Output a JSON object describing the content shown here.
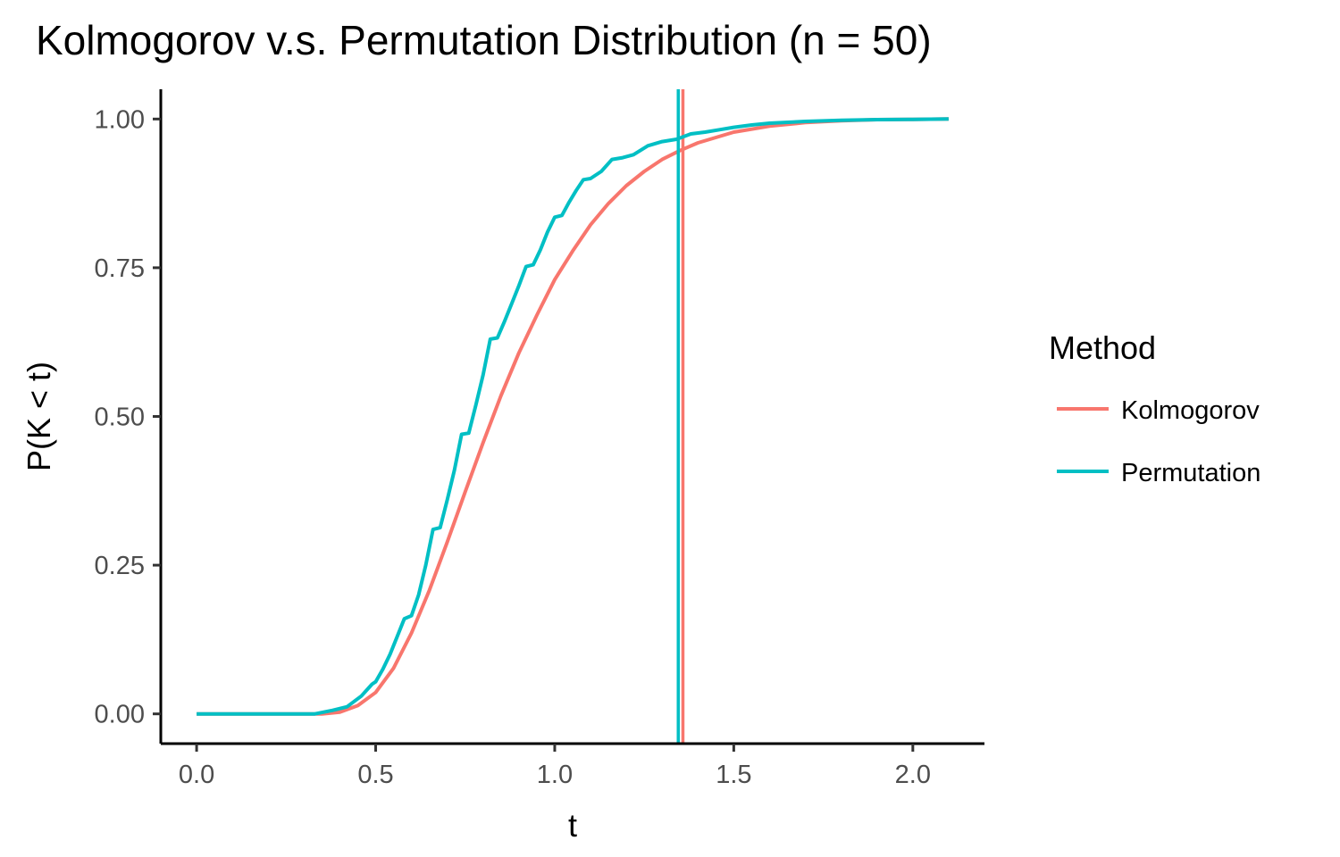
{
  "chart_data": {
    "type": "line",
    "title": "Kolmogorov v.s. Permutation Distribution (n = 50)",
    "xlabel": "t",
    "ylabel": "P(K < t)",
    "xlim": [
      -0.1,
      2.2
    ],
    "ylim": [
      -0.05,
      1.05
    ],
    "x_ticks": [
      0.0,
      0.5,
      1.0,
      1.5,
      2.0
    ],
    "x_tick_labels": [
      "0.0",
      "0.5",
      "1.0",
      "1.5",
      "2.0"
    ],
    "y_ticks": [
      0.0,
      0.25,
      0.5,
      0.75,
      1.0
    ],
    "y_tick_labels": [
      "0.00",
      "0.25",
      "0.50",
      "0.75",
      "1.00"
    ],
    "grid": false,
    "legend": {
      "title": "Method",
      "position": "right"
    },
    "series": [
      {
        "name": "Kolmogorov",
        "color": "#F8766D",
        "x": [
          0.0,
          0.3,
          0.35,
          0.4,
          0.45,
          0.5,
          0.55,
          0.6,
          0.65,
          0.7,
          0.75,
          0.8,
          0.85,
          0.9,
          0.95,
          1.0,
          1.05,
          1.1,
          1.15,
          1.2,
          1.25,
          1.3,
          1.35,
          1.4,
          1.5,
          1.6,
          1.7,
          1.8,
          1.9,
          2.0,
          2.1
        ],
        "y": [
          0.0,
          0.0,
          0.0,
          0.003,
          0.014,
          0.036,
          0.077,
          0.136,
          0.208,
          0.289,
          0.373,
          0.456,
          0.535,
          0.607,
          0.67,
          0.73,
          0.778,
          0.822,
          0.858,
          0.888,
          0.912,
          0.932,
          0.947,
          0.96,
          0.978,
          0.988,
          0.994,
          0.997,
          0.999,
          0.9995,
          1.0
        ],
        "vline": 1.358
      },
      {
        "name": "Permutation",
        "color": "#00BFC4",
        "x": [
          0.0,
          0.33,
          0.38,
          0.42,
          0.46,
          0.49,
          0.5,
          0.52,
          0.54,
          0.56,
          0.58,
          0.6,
          0.62,
          0.64,
          0.66,
          0.68,
          0.7,
          0.72,
          0.74,
          0.76,
          0.78,
          0.8,
          0.82,
          0.84,
          0.86,
          0.88,
          0.9,
          0.92,
          0.94,
          0.96,
          0.98,
          1.0,
          1.02,
          1.04,
          1.06,
          1.08,
          1.1,
          1.13,
          1.16,
          1.19,
          1.22,
          1.26,
          1.3,
          1.34,
          1.38,
          1.42,
          1.46,
          1.5,
          1.55,
          1.6,
          1.7,
          1.8,
          1.9,
          2.0,
          2.1
        ],
        "y": [
          0.0,
          0.0,
          0.006,
          0.012,
          0.03,
          0.05,
          0.054,
          0.075,
          0.1,
          0.13,
          0.16,
          0.165,
          0.2,
          0.25,
          0.31,
          0.313,
          0.36,
          0.41,
          0.47,
          0.472,
          0.52,
          0.57,
          0.63,
          0.632,
          0.66,
          0.69,
          0.72,
          0.752,
          0.755,
          0.78,
          0.81,
          0.835,
          0.838,
          0.86,
          0.88,
          0.898,
          0.9,
          0.912,
          0.932,
          0.935,
          0.94,
          0.955,
          0.962,
          0.966,
          0.975,
          0.978,
          0.982,
          0.986,
          0.99,
          0.993,
          0.996,
          0.998,
          0.999,
          0.9995,
          1.0
        ],
        "vline": 1.345
      }
    ]
  }
}
